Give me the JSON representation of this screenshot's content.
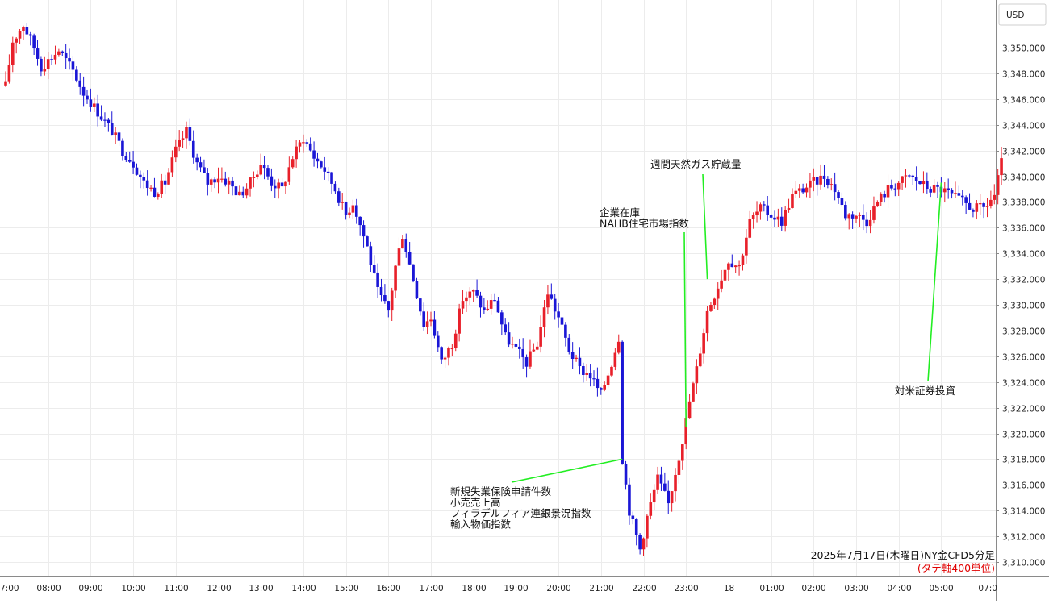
{
  "chart_data": {
    "type": "candlestick",
    "currency_label": "USD",
    "caption": "2025年7月17日(木曜日)NY金CFD5分足",
    "axis_note": "(タテ軸400単位)",
    "ylim": [
      3308.8,
      3354.2
    ],
    "y_ticks": [
      3310,
      3312,
      3314,
      3316,
      3318,
      3320,
      3322,
      3324,
      3326,
      3328,
      3330,
      3332,
      3334,
      3336,
      3338,
      3340,
      3342,
      3344,
      3346,
      3348,
      3350
    ],
    "y_tick_labels": [
      "3,310.000",
      "3,312.000",
      "3,314.000",
      "3,316.000",
      "3,318.000",
      "3,320.000",
      "3,322.000",
      "3,324.000",
      "3,326.000",
      "3,328.000",
      "3,330.000",
      "3,332.000",
      "3,334.000",
      "3,336.000",
      "3,338.000",
      "3,340.000",
      "3,342.000",
      "3,344.000",
      "3,346.000",
      "3,348.000",
      "3,350.000"
    ],
    "x_ticks": [
      "7:00",
      "08:00",
      "09:00",
      "10:00",
      "11:00",
      "12:00",
      "13:00",
      "14:00",
      "15:00",
      "16:00",
      "17:00",
      "18:00",
      "19:00",
      "20:00",
      "21:00",
      "22:00",
      "23:00",
      "18",
      "01:00",
      "02:00",
      "03:00",
      "04:00",
      "05:00",
      "07:0"
    ],
    "grid": true,
    "colors": {
      "up": "#e8202a",
      "down": "#1a16d6",
      "annotation_line": "#22ee22",
      "axis_note": "#e00000"
    },
    "annotations": [
      {
        "lines": [
          "新規失業保険申請件数",
          "小売売上高",
          "フィラデルフィア連銀景況指数",
          "輸入物価指数"
        ],
        "time": "21:30",
        "price": 3318.0
      },
      {
        "lines": [
          "企業在庫",
          "NAHB住宅市場指数"
        ],
        "time": "23:00",
        "price": 3320.5
      },
      {
        "lines": [
          "週間天然ガス貯蔵量"
        ],
        "time": "23:30",
        "price": 3332.0
      },
      {
        "lines": [
          "対米証券投資"
        ],
        "time": "05:00",
        "price": 3339.5
      }
    ],
    "close_path": [
      [
        "7:00",
        3347.0
      ],
      [
        "7:10",
        3350.5
      ],
      [
        "7:25",
        3351.8
      ],
      [
        "7:40",
        3350.0
      ],
      [
        "7:50",
        3348.5
      ],
      [
        "8:00",
        3349.0
      ],
      [
        "8:15",
        3349.8
      ],
      [
        "8:35",
        3348.2
      ],
      [
        "8:50",
        3346.5
      ],
      [
        "9:10",
        3345.0
      ],
      [
        "9:30",
        3343.5
      ],
      [
        "9:45",
        3342.0
      ],
      [
        "10:00",
        3341.0
      ],
      [
        "10:15",
        3339.5
      ],
      [
        "10:30",
        3338.8
      ],
      [
        "10:45",
        3339.5
      ],
      [
        "11:00",
        3342.0
      ],
      [
        "11:15",
        3343.5
      ],
      [
        "11:30",
        3341.0
      ],
      [
        "11:45",
        3339.5
      ],
      [
        "12:00",
        3340.0
      ],
      [
        "12:15",
        3339.5
      ],
      [
        "12:30",
        3338.5
      ],
      [
        "12:45",
        3339.5
      ],
      [
        "13:00",
        3341.0
      ],
      [
        "13:15",
        3339.5
      ],
      [
        "13:30",
        3339.0
      ],
      [
        "13:45",
        3341.5
      ],
      [
        "14:00",
        3343.0
      ],
      [
        "14:15",
        3341.5
      ],
      [
        "14:30",
        3340.5
      ],
      [
        "14:45",
        3339.0
      ],
      [
        "15:00",
        3337.0
      ],
      [
        "15:10",
        3338.0
      ],
      [
        "15:30",
        3334.5
      ],
      [
        "15:45",
        3331.0
      ],
      [
        "16:00",
        3329.5
      ],
      [
        "16:10",
        3333.0
      ],
      [
        "16:20",
        3335.5
      ],
      [
        "16:35",
        3332.0
      ],
      [
        "16:50",
        3328.5
      ],
      [
        "17:00",
        3329.0
      ],
      [
        "17:15",
        3325.5
      ],
      [
        "17:30",
        3327.0
      ],
      [
        "17:45",
        3330.5
      ],
      [
        "18:00",
        3331.0
      ],
      [
        "18:15",
        3329.5
      ],
      [
        "18:30",
        3330.5
      ],
      [
        "18:45",
        3327.5
      ],
      [
        "19:00",
        3326.5
      ],
      [
        "19:15",
        3325.5
      ],
      [
        "19:30",
        3327.0
      ],
      [
        "19:45",
        3331.0
      ],
      [
        "20:00",
        3329.0
      ],
      [
        "20:15",
        3326.5
      ],
      [
        "20:30",
        3325.0
      ],
      [
        "20:45",
        3324.5
      ],
      [
        "21:00",
        3323.0
      ],
      [
        "21:15",
        3325.5
      ],
      [
        "21:25",
        3327.5
      ],
      [
        "21:30",
        3318.0
      ],
      [
        "21:40",
        3314.0
      ],
      [
        "21:55",
        3311.0
      ],
      [
        "22:05",
        3313.5
      ],
      [
        "22:20",
        3316.5
      ],
      [
        "22:35",
        3314.5
      ],
      [
        "22:45",
        3317.0
      ],
      [
        "22:55",
        3319.5
      ],
      [
        "23:05",
        3322.5
      ],
      [
        "23:15",
        3325.0
      ],
      [
        "23:30",
        3329.5
      ],
      [
        "23:45",
        3331.5
      ],
      [
        "0:00",
        3333.5
      ],
      [
        "0:15",
        3333.0
      ],
      [
        "0:30",
        3336.5
      ],
      [
        "0:45",
        3337.5
      ],
      [
        "1:00",
        3337.0
      ],
      [
        "1:15",
        3336.5
      ],
      [
        "1:30",
        3338.5
      ],
      [
        "1:45",
        3339.0
      ],
      [
        "2:00",
        3339.5
      ],
      [
        "2:15",
        3340.0
      ],
      [
        "2:30",
        3339.0
      ],
      [
        "2:45",
        3337.0
      ],
      [
        "3:00",
        3337.0
      ],
      [
        "3:15",
        3336.5
      ],
      [
        "3:30",
        3338.0
      ],
      [
        "3:45",
        3339.0
      ],
      [
        "4:00",
        3339.5
      ],
      [
        "4:15",
        3340.0
      ],
      [
        "4:30",
        3339.5
      ],
      [
        "4:45",
        3339.0
      ],
      [
        "5:00",
        3339.0
      ],
      [
        "5:15",
        3338.5
      ],
      [
        "5:30",
        3338.0
      ],
      [
        "5:45",
        3337.5
      ],
      [
        "6:00",
        3337.5
      ],
      [
        "6:15",
        3338.5
      ],
      [
        "6:25",
        3341.0
      ]
    ]
  }
}
